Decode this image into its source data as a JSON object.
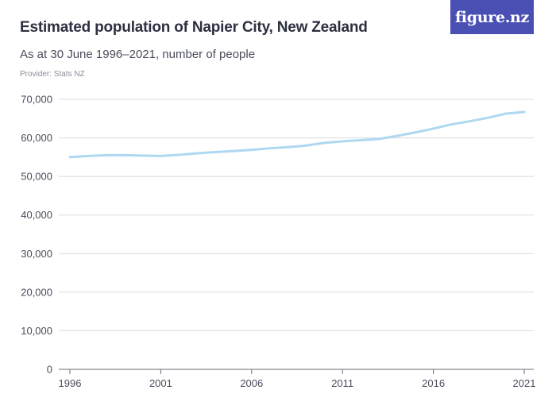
{
  "header": {
    "title": "Estimated population of Napier City, New Zealand",
    "subtitle": "As at 30 June 1996–2021, number of people",
    "provider": "Provider: Stats NZ",
    "logo": "figure.nz"
  },
  "colors": {
    "line": "#aed8f2",
    "grid": "#d9dbe0",
    "brand": "#4a4fb4",
    "text": "#4a4d5c"
  },
  "chart_data": {
    "type": "line",
    "x": [
      1996,
      1997,
      1998,
      1999,
      2000,
      2001,
      2002,
      2003,
      2004,
      2005,
      2006,
      2007,
      2008,
      2009,
      2010,
      2011,
      2012,
      2013,
      2014,
      2015,
      2016,
      2017,
      2018,
      2019,
      2020,
      2021
    ],
    "series": [
      {
        "values": [
          55000,
          55300,
          55500,
          55500,
          55400,
          55300,
          55600,
          56000,
          56300,
          56600,
          56900,
          57300,
          57600,
          58000,
          58700,
          59100,
          59400,
          59700,
          60500,
          61400,
          62400,
          63500,
          64300,
          65200,
          66300,
          66700
        ]
      }
    ],
    "x_ticks": [
      "1996",
      "2001",
      "2006",
      "2011",
      "2016",
      "2021"
    ],
    "y_ticks": [
      "0",
      "10,000",
      "20,000",
      "30,000",
      "40,000",
      "50,000",
      "60,000",
      "70,000"
    ],
    "ylim": [
      0,
      70000
    ],
    "xlim": [
      1996,
      2021
    ],
    "grid": true,
    "legend": "none"
  }
}
